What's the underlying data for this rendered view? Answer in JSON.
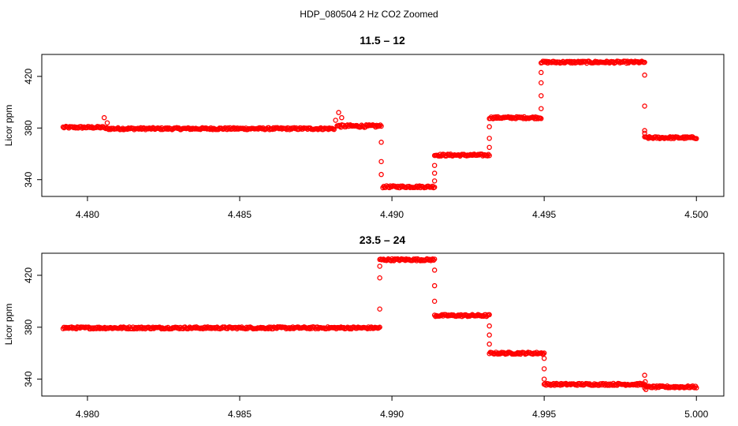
{
  "suptitle": "HDP_080504  2 Hz CO2 Zoomed",
  "colors": {
    "points": "#ff0000",
    "axis": "#000000",
    "background": "#ffffff"
  },
  "chart_data": [
    {
      "type": "scatter",
      "title": "11.5 – 12",
      "xlabel": "",
      "ylabel": "Licor ppm",
      "xlim": [
        4.4785,
        4.5009
      ],
      "ylim": [
        327,
        437
      ],
      "xticks": [
        4.48,
        4.485,
        4.49,
        4.495,
        4.5
      ],
      "xtick_labels": [
        "4.480",
        "4.485",
        "4.490",
        "4.495",
        "4.500"
      ],
      "yticks": [
        340,
        380,
        420
      ],
      "ytick_labels": [
        "340",
        "380",
        "420"
      ],
      "grid": false,
      "series": [
        {
          "marker": "open-circle",
          "segments": [
            {
              "x": [
                4.4792,
                4.48055
              ],
              "y": 380.5,
              "noise": 0.8
            },
            {
              "x": [
                4.4806,
                4.4881
              ],
              "y": 379.5,
              "noise": 0.8
            },
            {
              "x": [
                4.4882,
                4.48965
              ],
              "y": 381.5,
              "noise": 1.0
            },
            {
              "x": [
                4.4897,
                4.4914
              ],
              "y": 334.5,
              "noise": 0.8
            },
            {
              "x": [
                4.4914,
                4.4932
              ],
              "y": 359,
              "noise": 0.8
            },
            {
              "x": [
                4.4932,
                4.4949
              ],
              "y": 388,
              "noise": 0.8
            },
            {
              "x": [
                4.4949,
                4.4983
              ],
              "y": 431,
              "noise": 0.8
            },
            {
              "x": [
                4.4983,
                4.5
              ],
              "y": 372.5,
              "noise": 0.8
            }
          ],
          "spikes": [
            {
              "x": 4.48055,
              "y": 388
            },
            {
              "x": 4.48065,
              "y": 384
            },
            {
              "x": 4.48815,
              "y": 386
            },
            {
              "x": 4.48825,
              "y": 392
            },
            {
              "x": 4.48835,
              "y": 388
            }
          ],
          "transitions": [
            {
              "x": 4.48965,
              "y": [
                369,
                354,
                344
              ]
            },
            {
              "x": 4.4914,
              "y": [
                339,
                345,
                351
              ]
            },
            {
              "x": 4.4932,
              "y": [
                365,
                372,
                381
              ]
            },
            {
              "x": 4.4949,
              "y": [
                395,
                405,
                415,
                423
              ]
            },
            {
              "x": 4.4983,
              "y": [
                421,
                397,
                378,
                376
              ]
            }
          ]
        }
      ]
    },
    {
      "type": "scatter",
      "title": "23.5 – 24",
      "xlabel": "",
      "ylabel": "Licor ppm",
      "xlim": [
        4.9785,
        5.0009
      ],
      "ylim": [
        327,
        437
      ],
      "xticks": [
        4.98,
        4.985,
        4.99,
        4.995,
        5.0
      ],
      "xtick_labels": [
        "4.980",
        "4.985",
        "4.990",
        "4.995",
        "5.000"
      ],
      "yticks": [
        340,
        380,
        420
      ],
      "ytick_labels": [
        "340",
        "380",
        "420"
      ],
      "grid": false,
      "series": [
        {
          "marker": "open-circle",
          "segments": [
            {
              "x": [
                4.9792,
                4.9896
              ],
              "y": 379.5,
              "noise": 0.8
            },
            {
              "x": [
                4.9896,
                4.9914
              ],
              "y": 432,
              "noise": 0.8
            },
            {
              "x": [
                4.9914,
                4.9932
              ],
              "y": 389,
              "noise": 0.8
            },
            {
              "x": [
                4.9932,
                4.995
              ],
              "y": 360,
              "noise": 0.8
            },
            {
              "x": [
                4.995,
                4.9983
              ],
              "y": 336,
              "noise": 0.8
            },
            {
              "x": [
                4.9983,
                5.0
              ],
              "y": 334,
              "noise": 0.8
            }
          ],
          "spikes": [
            {
              "x": 4.9983,
              "y": 343
            },
            {
              "x": 4.99832,
              "y": 338
            },
            {
              "x": 4.99834,
              "y": 332
            }
          ],
          "transitions": [
            {
              "x": 4.9896,
              "y": [
                394,
                418,
                427
              ]
            },
            {
              "x": 4.9914,
              "y": [
                424,
                412,
                400
              ]
            },
            {
              "x": 4.9932,
              "y": [
                381,
                374,
                367
              ]
            },
            {
              "x": 4.995,
              "y": [
                356,
                348,
                340
              ]
            }
          ]
        }
      ]
    }
  ]
}
